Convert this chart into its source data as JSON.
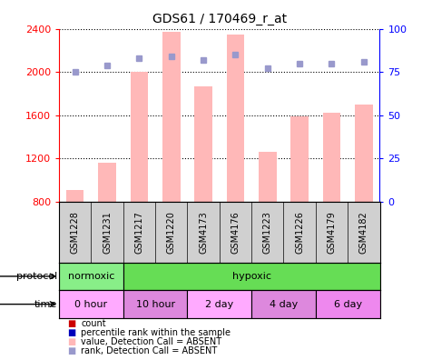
{
  "title": "GDS61 / 170469_r_at",
  "samples": [
    "GSM1228",
    "GSM1231",
    "GSM1217",
    "GSM1220",
    "GSM4173",
    "GSM4176",
    "GSM1223",
    "GSM1226",
    "GSM4179",
    "GSM4182"
  ],
  "bar_values": [
    910,
    1160,
    2000,
    2370,
    1870,
    2350,
    1260,
    1590,
    1620,
    1700
  ],
  "bar_base": 800,
  "rank_values": [
    75,
    79,
    83,
    84,
    82,
    85,
    77,
    80,
    80,
    81
  ],
  "ylim_left": [
    800,
    2400
  ],
  "ylim_right": [
    0,
    100
  ],
  "yticks_left": [
    800,
    1200,
    1600,
    2000,
    2400
  ],
  "yticks_right": [
    0,
    25,
    50,
    75,
    100
  ],
  "bar_color": "#ffb8b8",
  "rank_color": "#9999cc",
  "protocol_groups": [
    {
      "label": "normoxic",
      "start": 0,
      "end": 2,
      "color": "#88ee88"
    },
    {
      "label": "hypoxic",
      "start": 2,
      "end": 10,
      "color": "#66dd55"
    }
  ],
  "time_groups": [
    {
      "label": "0 hour",
      "start": 0,
      "end": 2,
      "color": "#ffaaff"
    },
    {
      "label": "10 hour",
      "start": 2,
      "end": 4,
      "color": "#dd88dd"
    },
    {
      "label": "2 day",
      "start": 4,
      "end": 6,
      "color": "#ffaaff"
    },
    {
      "label": "4 day",
      "start": 6,
      "end": 8,
      "color": "#dd88dd"
    },
    {
      "label": "6 day",
      "start": 8,
      "end": 10,
      "color": "#ee88ee"
    }
  ],
  "legend_items": [
    {
      "label": "count",
      "color": "#cc0000"
    },
    {
      "label": "percentile rank within the sample",
      "color": "#0000bb"
    },
    {
      "label": "value, Detection Call = ABSENT",
      "color": "#ffb8b8"
    },
    {
      "label": "rank, Detection Call = ABSENT",
      "color": "#9999cc"
    }
  ]
}
